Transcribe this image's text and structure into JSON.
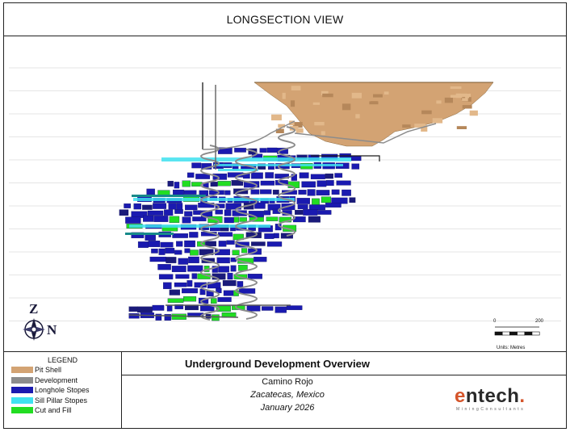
{
  "header": {
    "title": "LONGSECTION VIEW"
  },
  "view": {
    "compass": {
      "north_label": "N",
      "zenith_label": "Z"
    },
    "scale": {
      "start_label": "0",
      "end_label": "200",
      "units_label": "Units: Metres"
    },
    "colors": {
      "pit_shell": "#d3a373",
      "development": "#8c8c8c",
      "longhole_stopes": "#1a1ab0",
      "sill_pillar_stopes": "#3fe2f0",
      "cut_and_fill": "#22dd22"
    }
  },
  "legend": {
    "title": "LEGEND",
    "items": [
      {
        "label": "Pit Shell",
        "color": "#d3a373",
        "icon": "swatch-icon"
      },
      {
        "label": "Development",
        "color": "#8c8c8c",
        "icon": "swatch-icon"
      },
      {
        "label": "Longhole Stopes",
        "color": "#1a1ab0",
        "icon": "swatch-icon"
      },
      {
        "label": "Sill Pillar Stopes",
        "color": "#3fe2f0",
        "icon": "swatch-icon"
      },
      {
        "label": "Cut and Fill",
        "color": "#22dd22",
        "icon": "swatch-icon"
      }
    ]
  },
  "info": {
    "title": "Underground Development Overview",
    "project": "Camino Rojo",
    "location": "Zacatecas, Mexico",
    "date": "January 2026"
  },
  "logo": {
    "main": "entech",
    "dot": ".",
    "sub": "MiningConsultants",
    "main_color": "#2a2a2a",
    "accent_color": "#d5552b"
  }
}
